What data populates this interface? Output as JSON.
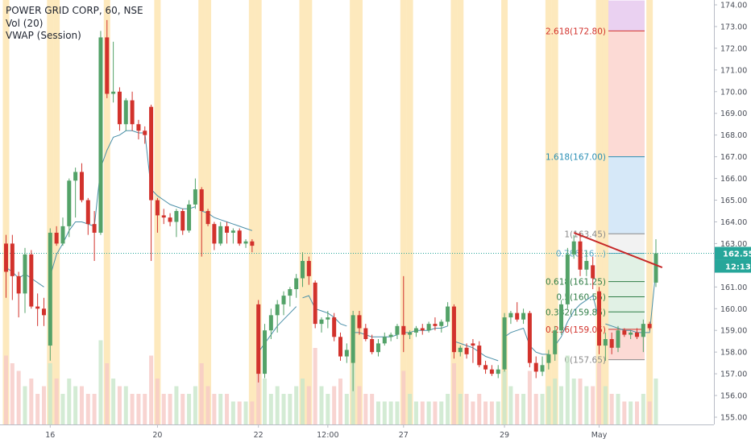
{
  "legend": {
    "symbol_line": "POWER GRID CORP, 60, NSE",
    "volume_line": "Vol (20)",
    "vwap_line": "VWAP (Session)"
  },
  "colors": {
    "up": "#53a268",
    "down": "#d2322c",
    "vwap": "#4a8fa8",
    "session_band": "#fde9bd",
    "price_line": "#26a69a",
    "last_price_tag": "#26a69a",
    "countdown_tag": "#26a69a",
    "trendline": "#c62828",
    "fib_zone_top": "#e6c9ef",
    "fib_zone_red": "#fbd3ce",
    "fib_zone_blue": "#cfe4f7",
    "fib_zone_grey": "#f0f0f0",
    "fib_zone_green": "#dcefe1"
  },
  "price_axis": {
    "ticks": [
      "155.00",
      "156.00",
      "157.00",
      "158.00",
      "159.00",
      "160.00",
      "161.00",
      "162.00",
      "163.00",
      "164.00",
      "165.00",
      "166.00",
      "167.00",
      "168.00",
      "169.00",
      "170.00",
      "171.00",
      "172.00",
      "173.00",
      "174.00"
    ]
  },
  "last_price_tag": {
    "value": "162.55",
    "countdown": "12:13"
  },
  "time_axis": {
    "labels": [
      {
        "text": "16",
        "bar": 7
      },
      {
        "text": "20",
        "bar": 24
      },
      {
        "text": "22",
        "bar": 40
      },
      {
        "text": "12:00",
        "bar": 51
      },
      {
        "text": "27",
        "bar": 63
      },
      {
        "text": "29",
        "bar": 79
      },
      {
        "text": "May",
        "bar": 94
      }
    ]
  },
  "fibonacci": {
    "levels": [
      {
        "label": "2.618(172.80)",
        "price": 172.8,
        "color": "#d2322c"
      },
      {
        "label": "1.618(167.00)",
        "price": 167.0,
        "color": "#2a8fb5"
      },
      {
        "label": "1(163.45)",
        "price": 163.45,
        "color": "#8a8a8a"
      },
      {
        "label": "0.786(16…)",
        "price": 162.55,
        "color": "#5aa6c8"
      },
      {
        "label": "0.618(161.25)",
        "price": 161.25,
        "color": "#2f7d46"
      },
      {
        "label": "0.5(160.55)",
        "price": 160.55,
        "color": "#2f7d46"
      },
      {
        "label": "0.382(159.85)",
        "price": 159.85,
        "color": "#2f7d46"
      },
      {
        "label": "0.236(159.05)",
        "price": 159.05,
        "color": "#d2322c"
      },
      {
        "label": "0(157.65)",
        "price": 157.65,
        "color": "#8a8a8a"
      }
    ]
  },
  "trendline": {
    "start": {
      "bar": 90,
      "price": 163.5
    },
    "end": {
      "bar": 104,
      "price": 161.9
    }
  },
  "chart_data": {
    "type": "candlestick",
    "title": "POWER GRID CORP, 60, NSE",
    "ylim": [
      154.8,
      174.2
    ],
    "price_line": 162.55,
    "session_bands_at_bars": [
      0,
      7,
      8,
      16,
      24,
      31,
      32,
      39,
      40,
      47,
      48,
      55,
      56,
      63,
      64,
      71,
      72,
      79,
      86,
      87,
      94,
      95,
      102
    ],
    "candles": [
      {
        "o": 163.0,
        "h": 163.4,
        "l": 160.5,
        "c": 161.7
      },
      {
        "o": 163.0,
        "h": 163.4,
        "l": 160.4,
        "c": 161.5
      },
      {
        "o": 161.5,
        "h": 161.7,
        "l": 159.6,
        "c": 160.7
      },
      {
        "o": 160.7,
        "h": 162.8,
        "l": 159.8,
        "c": 162.5
      },
      {
        "o": 162.5,
        "h": 162.7,
        "l": 160.0,
        "c": 160.1
      },
      {
        "o": 160.1,
        "h": 160.7,
        "l": 159.2,
        "c": 160.0
      },
      {
        "o": 160.0,
        "h": 160.5,
        "l": 159.2,
        "c": 159.7
      },
      {
        "o": 158.3,
        "h": 163.7,
        "l": 157.6,
        "c": 163.5
      },
      {
        "o": 163.5,
        "h": 163.8,
        "l": 162.9,
        "c": 163.0
      },
      {
        "o": 163.0,
        "h": 164.2,
        "l": 162.9,
        "c": 163.8
      },
      {
        "o": 163.8,
        "h": 166.0,
        "l": 163.3,
        "c": 165.9
      },
      {
        "o": 165.9,
        "h": 166.5,
        "l": 164.2,
        "c": 166.3
      },
      {
        "o": 166.3,
        "h": 166.7,
        "l": 164.9,
        "c": 165.0
      },
      {
        "o": 165.0,
        "h": 165.1,
        "l": 163.4,
        "c": 163.9
      },
      {
        "o": 163.9,
        "h": 164.5,
        "l": 162.2,
        "c": 163.5
      },
      {
        "o": 163.5,
        "h": 172.8,
        "l": 163.4,
        "c": 172.5
      },
      {
        "o": 172.5,
        "h": 173.3,
        "l": 169.7,
        "c": 169.9
      },
      {
        "o": 169.9,
        "h": 172.3,
        "l": 169.5,
        "c": 170.0
      },
      {
        "o": 170.0,
        "h": 170.2,
        "l": 168.2,
        "c": 168.5
      },
      {
        "o": 168.5,
        "h": 169.7,
        "l": 168.2,
        "c": 169.6
      },
      {
        "o": 169.6,
        "h": 170.0,
        "l": 168.2,
        "c": 168.5
      },
      {
        "o": 168.5,
        "h": 168.7,
        "l": 167.8,
        "c": 168.2
      },
      {
        "o": 168.2,
        "h": 168.4,
        "l": 167.6,
        "c": 168.0
      },
      {
        "o": 169.3,
        "h": 169.4,
        "l": 162.2,
        "c": 165.0
      },
      {
        "o": 165.0,
        "h": 165.1,
        "l": 163.5,
        "c": 164.3
      },
      {
        "o": 164.3,
        "h": 164.6,
        "l": 163.9,
        "c": 164.2
      },
      {
        "o": 164.2,
        "h": 164.4,
        "l": 163.8,
        "c": 164.0
      },
      {
        "o": 164.0,
        "h": 164.6,
        "l": 163.3,
        "c": 164.5
      },
      {
        "o": 164.5,
        "h": 164.6,
        "l": 163.4,
        "c": 163.6
      },
      {
        "o": 163.6,
        "h": 165.0,
        "l": 163.5,
        "c": 164.8
      },
      {
        "o": 164.8,
        "h": 166.0,
        "l": 164.6,
        "c": 165.5
      },
      {
        "o": 165.5,
        "h": 165.6,
        "l": 162.4,
        "c": 164.5
      },
      {
        "o": 164.5,
        "h": 164.6,
        "l": 163.8,
        "c": 163.9
      },
      {
        "o": 163.9,
        "h": 164.0,
        "l": 162.7,
        "c": 163.0
      },
      {
        "o": 163.0,
        "h": 164.0,
        "l": 162.9,
        "c": 163.8
      },
      {
        "o": 163.8,
        "h": 164.0,
        "l": 163.0,
        "c": 163.5
      },
      {
        "o": 163.5,
        "h": 163.7,
        "l": 163.0,
        "c": 163.6
      },
      {
        "o": 163.6,
        "h": 163.7,
        "l": 162.9,
        "c": 163.0
      },
      {
        "o": 163.0,
        "h": 163.2,
        "l": 162.8,
        "c": 163.1
      },
      {
        "o": 163.1,
        "h": 163.2,
        "l": 162.6,
        "c": 162.9
      },
      {
        "o": 160.2,
        "h": 160.4,
        "l": 156.6,
        "c": 157.0
      },
      {
        "o": 157.0,
        "h": 159.3,
        "l": 156.8,
        "c": 159.0
      },
      {
        "o": 159.0,
        "h": 160.0,
        "l": 158.6,
        "c": 159.7
      },
      {
        "o": 159.7,
        "h": 160.4,
        "l": 158.9,
        "c": 160.2
      },
      {
        "o": 160.2,
        "h": 160.8,
        "l": 159.7,
        "c": 160.6
      },
      {
        "o": 160.6,
        "h": 161.0,
        "l": 160.1,
        "c": 160.9
      },
      {
        "o": 160.9,
        "h": 161.6,
        "l": 160.5,
        "c": 161.4
      },
      {
        "o": 161.4,
        "h": 162.6,
        "l": 161.0,
        "c": 162.2
      },
      {
        "o": 162.2,
        "h": 162.4,
        "l": 161.1,
        "c": 161.5
      },
      {
        "o": 161.2,
        "h": 161.3,
        "l": 159.1,
        "c": 159.3
      },
      {
        "o": 159.3,
        "h": 159.6,
        "l": 158.9,
        "c": 159.5
      },
      {
        "o": 159.5,
        "h": 159.9,
        "l": 159.1,
        "c": 159.6
      },
      {
        "o": 159.6,
        "h": 159.8,
        "l": 158.5,
        "c": 158.7
      },
      {
        "o": 158.7,
        "h": 158.9,
        "l": 157.6,
        "c": 157.8
      },
      {
        "o": 157.8,
        "h": 158.4,
        "l": 157.5,
        "c": 158.1
      },
      {
        "o": 157.5,
        "h": 159.9,
        "l": 156.2,
        "c": 159.7
      },
      {
        "o": 159.7,
        "h": 159.9,
        "l": 158.8,
        "c": 159.1
      },
      {
        "o": 159.1,
        "h": 159.3,
        "l": 158.5,
        "c": 158.6
      },
      {
        "o": 158.6,
        "h": 158.8,
        "l": 157.9,
        "c": 158.0
      },
      {
        "o": 158.0,
        "h": 158.6,
        "l": 157.8,
        "c": 158.4
      },
      {
        "o": 158.4,
        "h": 158.9,
        "l": 158.3,
        "c": 158.7
      },
      {
        "o": 158.7,
        "h": 158.9,
        "l": 158.5,
        "c": 158.8
      },
      {
        "o": 158.8,
        "h": 159.3,
        "l": 158.6,
        "c": 159.2
      },
      {
        "o": 159.2,
        "h": 161.5,
        "l": 158.0,
        "c": 158.8
      },
      {
        "o": 158.8,
        "h": 159.0,
        "l": 158.6,
        "c": 158.9
      },
      {
        "o": 158.9,
        "h": 159.2,
        "l": 158.7,
        "c": 159.1
      },
      {
        "o": 159.1,
        "h": 159.3,
        "l": 158.8,
        "c": 159.0
      },
      {
        "o": 159.0,
        "h": 159.4,
        "l": 158.9,
        "c": 159.3
      },
      {
        "o": 159.3,
        "h": 159.6,
        "l": 159.0,
        "c": 159.2
      },
      {
        "o": 159.2,
        "h": 159.5,
        "l": 158.9,
        "c": 159.4
      },
      {
        "o": 159.4,
        "h": 160.3,
        "l": 159.2,
        "c": 160.1
      },
      {
        "o": 160.1,
        "h": 160.2,
        "l": 157.7,
        "c": 158.0
      },
      {
        "o": 158.0,
        "h": 158.3,
        "l": 157.8,
        "c": 158.2
      },
      {
        "o": 158.2,
        "h": 158.4,
        "l": 157.7,
        "c": 157.9
      },
      {
        "o": 158.4,
        "h": 158.6,
        "l": 157.5,
        "c": 158.3
      },
      {
        "o": 158.3,
        "h": 158.5,
        "l": 157.3,
        "c": 157.4
      },
      {
        "o": 157.4,
        "h": 157.6,
        "l": 157.0,
        "c": 157.2
      },
      {
        "o": 157.2,
        "h": 157.4,
        "l": 156.9,
        "c": 157.0
      },
      {
        "o": 157.0,
        "h": 157.4,
        "l": 156.8,
        "c": 157.2
      },
      {
        "o": 157.2,
        "h": 159.8,
        "l": 157.1,
        "c": 159.6
      },
      {
        "o": 159.6,
        "h": 159.9,
        "l": 159.3,
        "c": 159.8
      },
      {
        "o": 159.8,
        "h": 160.3,
        "l": 159.4,
        "c": 159.5
      },
      {
        "o": 159.5,
        "h": 160.0,
        "l": 159.3,
        "c": 159.8
      },
      {
        "o": 159.8,
        "h": 159.9,
        "l": 157.3,
        "c": 157.5
      },
      {
        "o": 157.5,
        "h": 157.8,
        "l": 156.8,
        "c": 157.1
      },
      {
        "o": 157.1,
        "h": 157.8,
        "l": 156.9,
        "c": 157.4
      },
      {
        "o": 157.5,
        "h": 158.1,
        "l": 157.2,
        "c": 157.9
      },
      {
        "o": 157.9,
        "h": 159.2,
        "l": 157.6,
        "c": 159.0
      },
      {
        "o": 159.0,
        "h": 160.4,
        "l": 158.8,
        "c": 160.2
      },
      {
        "o": 160.2,
        "h": 162.8,
        "l": 160.0,
        "c": 162.5
      },
      {
        "o": 162.5,
        "h": 163.4,
        "l": 162.3,
        "c": 163.1
      },
      {
        "o": 163.1,
        "h": 163.5,
        "l": 161.5,
        "c": 161.8
      },
      {
        "o": 161.8,
        "h": 162.7,
        "l": 161.5,
        "c": 162.2
      },
      {
        "o": 162.0,
        "h": 162.4,
        "l": 160.9,
        "c": 161.4
      },
      {
        "o": 160.8,
        "h": 161.0,
        "l": 157.9,
        "c": 158.3
      },
      {
        "o": 158.3,
        "h": 158.9,
        "l": 157.6,
        "c": 158.6
      },
      {
        "o": 158.6,
        "h": 158.9,
        "l": 157.9,
        "c": 158.2
      },
      {
        "o": 158.2,
        "h": 159.2,
        "l": 158.0,
        "c": 159.0
      },
      {
        "o": 159.0,
        "h": 159.1,
        "l": 158.7,
        "c": 158.8
      },
      {
        "o": 158.8,
        "h": 159.0,
        "l": 158.6,
        "c": 158.9
      },
      {
        "o": 158.9,
        "h": 159.1,
        "l": 158.6,
        "c": 158.7
      },
      {
        "o": 158.7,
        "h": 159.5,
        "l": 158.0,
        "c": 159.3
      },
      {
        "o": 159.3,
        "h": 159.4,
        "l": 159.0,
        "c": 159.1
      },
      {
        "o": 161.2,
        "h": 163.2,
        "l": 161.0,
        "c": 162.55
      }
    ],
    "volume": [
      9,
      8,
      7,
      5,
      6,
      4,
      5,
      8,
      6,
      4,
      6,
      5,
      5,
      4,
      4,
      11,
      8,
      6,
      5,
      5,
      4,
      4,
      4,
      9,
      6,
      4,
      4,
      5,
      4,
      4,
      5,
      8,
      5,
      4,
      4,
      4,
      3,
      3,
      3,
      3,
      9,
      6,
      4,
      5,
      4,
      4,
      5,
      6,
      5,
      10,
      5,
      4,
      5,
      6,
      4,
      8,
      5,
      4,
      4,
      3,
      3,
      3,
      3,
      7,
      4,
      3,
      3,
      3,
      3,
      3,
      4,
      8,
      4,
      4,
      3,
      4,
      3,
      3,
      3,
      7,
      5,
      4,
      4,
      7,
      4,
      4,
      5,
      6,
      5,
      9,
      6,
      6,
      5,
      5,
      8,
      5,
      4,
      4,
      3,
      3,
      3,
      4,
      3,
      6
    ],
    "vwap": [
      161.9,
      161.7,
      161.4,
      161.6,
      161.4,
      161.2,
      161.0,
      161.5,
      162.5,
      163.0,
      163.6,
      164.0,
      164.0,
      163.9,
      163.8,
      166.5,
      167.3,
      167.9,
      168.0,
      168.2,
      168.2,
      168.1,
      168.1,
      165.5,
      165.2,
      165.0,
      164.8,
      164.7,
      164.6,
      164.6,
      164.7,
      164.5,
      164.4,
      164.2,
      164.1,
      164.0,
      163.9,
      163.8,
      163.7,
      163.6,
      158.0,
      158.4,
      158.8,
      159.2,
      159.5,
      159.8,
      160.1,
      160.5,
      160.6,
      160.0,
      159.9,
      159.8,
      159.6,
      159.3,
      159.2,
      158.9,
      158.9,
      158.8,
      158.7,
      158.7,
      158.7,
      158.7,
      158.8,
      158.9,
      158.9,
      159.0,
      159.0,
      159.0,
      159.1,
      159.1,
      159.2,
      158.5,
      158.4,
      158.3,
      158.2,
      158.0,
      157.8,
      157.7,
      157.6,
      158.7,
      158.9,
      159.0,
      159.1,
      158.3,
      158.0,
      157.9,
      157.9,
      158.3,
      158.7,
      159.4,
      159.9,
      160.2,
      160.4,
      160.6,
      159.5,
      159.3,
      159.2,
      159.1,
      159.0,
      159.0,
      158.9,
      158.9,
      158.9,
      161.8
    ]
  }
}
